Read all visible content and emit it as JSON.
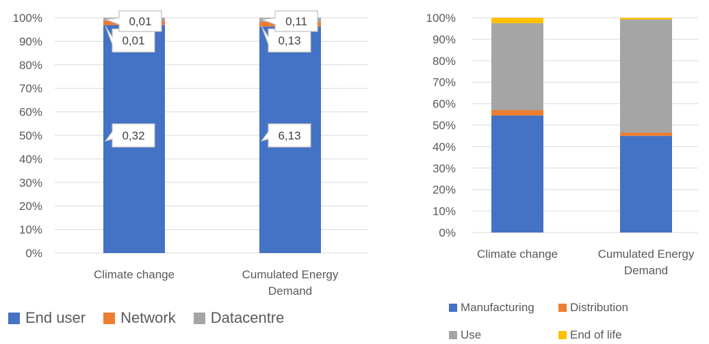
{
  "chart_data": [
    {
      "type": "bar",
      "stacked": true,
      "percent": true,
      "categories": [
        "Climate change",
        "Cumulated Energy Demand"
      ],
      "category_lines": [
        [
          "Climate change"
        ],
        [
          "Cumulated Energy",
          "Demand"
        ]
      ],
      "ylim": [
        0,
        100
      ],
      "y_ticks": [
        "0%",
        "10%",
        "20%",
        "30%",
        "40%",
        "50%",
        "60%",
        "70%",
        "80%",
        "90%",
        "100%"
      ],
      "grid": true,
      "legend_position": "bottom",
      "series": [
        {
          "name": "End user",
          "color": "#4472C4",
          "values": [
            96.9,
            96.3
          ],
          "data_labels": [
            "0,32",
            "6,13"
          ]
        },
        {
          "name": "Network",
          "color": "#ED7D31",
          "values": [
            1.9,
            2.0
          ],
          "data_labels": [
            "0,01",
            "0,13"
          ]
        },
        {
          "name": "Datacentre",
          "color": "#A5A5A5",
          "values": [
            1.2,
            1.7
          ],
          "data_labels": [
            "0,01",
            "0,11"
          ]
        }
      ]
    },
    {
      "type": "bar",
      "stacked": true,
      "percent": true,
      "categories": [
        "Climate change",
        "Cumulated Energy Demand"
      ],
      "category_lines": [
        [
          "Climate change"
        ],
        [
          "Cumulated Energy",
          "Demand"
        ]
      ],
      "ylim": [
        0,
        100
      ],
      "y_ticks": [
        "0%",
        "10%",
        "20%",
        "30%",
        "40%",
        "50%",
        "60%",
        "70%",
        "80%",
        "90%",
        "100%"
      ],
      "grid": true,
      "legend_position": "bottom",
      "series": [
        {
          "name": "Manufacturing",
          "color": "#4472C4",
          "values": [
            54.5,
            45.0
          ]
        },
        {
          "name": "Distribution",
          "color": "#ED7D31",
          "values": [
            2.5,
            1.5
          ]
        },
        {
          "name": "Use",
          "color": "#A5A5A5",
          "values": [
            40.5,
            52.7
          ]
        },
        {
          "name": "End of life",
          "color": "#FFC000",
          "values": [
            2.5,
            0.8
          ]
        }
      ]
    }
  ]
}
